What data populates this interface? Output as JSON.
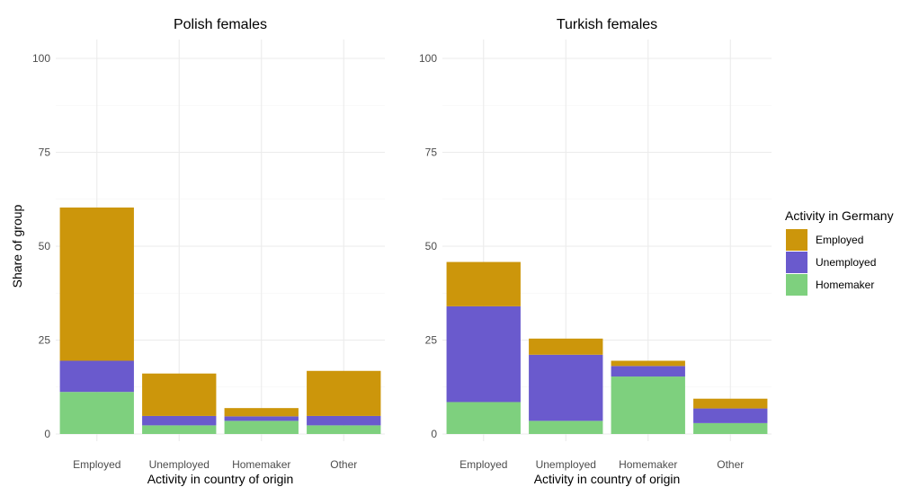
{
  "chart_data": {
    "type": "bar",
    "stacked": true,
    "panels": [
      {
        "title": "Polish females",
        "xlabel": "Activity in country of origin",
        "categories": [
          "Employed",
          "Unemployed",
          "Homemaker",
          "Other"
        ],
        "series": [
          {
            "name": "Homemaker",
            "values": [
              11.2,
              2.3,
              3.5,
              2.3
            ]
          },
          {
            "name": "Unemployed",
            "values": [
              8.3,
              2.5,
              1.2,
              2.5
            ]
          },
          {
            "name": "Employed",
            "values": [
              40.8,
              11.3,
              2.2,
              12.0
            ]
          }
        ]
      },
      {
        "title": "Turkish females",
        "xlabel": "Activity in country of origin",
        "categories": [
          "Employed",
          "Unemployed",
          "Homemaker",
          "Other"
        ],
        "series": [
          {
            "name": "Homemaker",
            "values": [
              8.5,
              3.5,
              15.3,
              2.9
            ]
          },
          {
            "name": "Unemployed",
            "values": [
              25.5,
              17.6,
              2.8,
              3.9
            ]
          },
          {
            "name": "Employed",
            "values": [
              11.8,
              4.3,
              1.4,
              2.6
            ]
          }
        ]
      }
    ],
    "ylabel": "Share of group",
    "ylim": [
      0,
      100
    ],
    "yticks": [
      0,
      25,
      50,
      75,
      100
    ],
    "grid": true,
    "legend": {
      "title": "Activity in Germany",
      "position": "right",
      "entries": [
        "Employed",
        "Unemployed",
        "Homemaker"
      ]
    },
    "colors": {
      "Employed": "#CC960B",
      "Unemployed": "#6A5ACD",
      "Homemaker": "#7ED07E"
    }
  }
}
